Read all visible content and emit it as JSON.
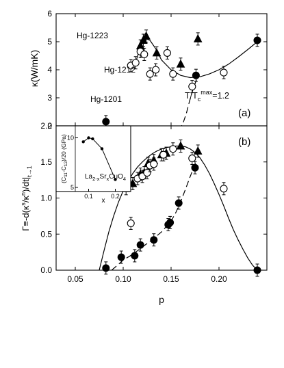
{
  "chart_data": [
    {
      "panel_label": "(a)",
      "type": "scatter",
      "ylabel": "κ(W/mK)",
      "ylim": [
        2,
        6
      ],
      "xlim": [
        0.03,
        0.25
      ],
      "yticks": [
        2,
        3,
        4,
        5,
        6
      ],
      "ytick_labels": [
        "2",
        "3",
        "4",
        "5",
        "6"
      ],
      "annotation": "T/Tcmax=1.2",
      "series": [
        {
          "name": "Hg-1223",
          "marker": "triangle",
          "points": [
            [
              0.118,
              4.85
            ],
            [
              0.121,
              5.05
            ],
            [
              0.124,
              5.2
            ],
            [
              0.135,
              4.6
            ],
            [
              0.16,
              4.2
            ],
            [
              0.178,
              5.1
            ]
          ]
        },
        {
          "name": "Hg-1212",
          "marker": "open-circle",
          "points": [
            [
              0.108,
              4.15
            ],
            [
              0.113,
              4.25
            ],
            [
              0.118,
              4.65
            ],
            [
              0.122,
              4.55
            ],
            [
              0.128,
              3.85
            ],
            [
              0.134,
              4.0
            ],
            [
              0.146,
              4.6
            ],
            [
              0.152,
              3.85
            ],
            [
              0.172,
              3.4
            ],
            [
              0.205,
              3.9
            ]
          ]
        },
        {
          "name": "Hg-1201",
          "marker": "filled-circle",
          "points": [
            [
              0.082,
              2.15
            ],
            [
              0.098,
              1.75
            ],
            [
              0.112,
              1.7
            ],
            [
              0.118,
              1.7
            ],
            [
              0.132,
              1.6
            ],
            [
              0.148,
              1.6
            ],
            [
              0.16,
              1.8
            ],
            [
              0.176,
              3.8
            ],
            [
              0.24,
              5.05
            ]
          ]
        }
      ],
      "curves": [
        {
          "style": "solid",
          "points": [
            [
              0.112,
              4.15
            ],
            [
              0.116,
              4.6
            ],
            [
              0.12,
              4.95
            ],
            [
              0.124,
              5.1
            ],
            [
              0.128,
              5.05
            ],
            [
              0.134,
              4.75
            ],
            [
              0.14,
              4.35
            ],
            [
              0.15,
              4.0
            ],
            [
              0.16,
              3.8
            ],
            [
              0.17,
              3.72
            ],
            [
              0.18,
              3.75
            ],
            [
              0.19,
              3.85
            ],
            [
              0.2,
              4.0
            ],
            [
              0.21,
              4.2
            ],
            [
              0.22,
              4.45
            ],
            [
              0.23,
              4.72
            ],
            [
              0.24,
              5.0
            ]
          ]
        },
        {
          "style": "dashed",
          "points": [
            [
              0.09,
              1.75
            ],
            [
              0.1,
              1.68
            ],
            [
              0.11,
              1.62
            ],
            [
              0.12,
              1.58
            ],
            [
              0.13,
              1.56
            ],
            [
              0.14,
              1.58
            ],
            [
              0.15,
              1.66
            ],
            [
              0.157,
              1.82
            ],
            [
              0.162,
              2.05
            ],
            [
              0.166,
              2.45
            ],
            [
              0.169,
              2.85
            ],
            [
              0.172,
              3.2
            ],
            [
              0.176,
              3.6
            ],
            [
              0.178,
              3.75
            ]
          ]
        }
      ]
    },
    {
      "panel_label": "(b)",
      "type": "scatter",
      "xlabel": "p",
      "ylabel": "Γ≡-d(κs/κn)/dt|t→1",
      "xlim": [
        0.03,
        0.25
      ],
      "ylim": [
        0,
        2
      ],
      "xticks": [
        0.05,
        0.1,
        0.15,
        0.2
      ],
      "xtick_labels": [
        "0.05",
        "0.10",
        "0.15",
        "0.20"
      ],
      "yticks": [
        0,
        0.5,
        1.0,
        1.5,
        2.0
      ],
      "ytick_labels": [
        "0.0",
        "0.5",
        "1.0",
        "1.5",
        "2.0"
      ],
      "series": [
        {
          "name": "Hg-1223",
          "marker": "triangle",
          "points": [
            [
              0.103,
              1.13
            ],
            [
              0.11,
              1.2
            ],
            [
              0.118,
              1.33
            ],
            [
              0.122,
              1.35
            ],
            [
              0.126,
              1.48
            ],
            [
              0.132,
              1.52
            ],
            [
              0.14,
              1.6
            ],
            [
              0.145,
              1.62
            ],
            [
              0.16,
              1.72
            ],
            [
              0.178,
              1.65
            ]
          ]
        },
        {
          "name": "Hg-1212",
          "marker": "open-circle",
          "points": [
            [
              0.108,
              0.65
            ],
            [
              0.115,
              1.27
            ],
            [
              0.12,
              1.3
            ],
            [
              0.125,
              1.35
            ],
            [
              0.128,
              1.45
            ],
            [
              0.132,
              1.47
            ],
            [
              0.142,
              1.6
            ],
            [
              0.152,
              1.68
            ],
            [
              0.172,
              1.55
            ],
            [
              0.205,
              1.13
            ]
          ]
        },
        {
          "name": "Hg-1201",
          "marker": "filled-circle",
          "points": [
            [
              0.082,
              0.03
            ],
            [
              0.098,
              0.18
            ],
            [
              0.112,
              0.2
            ],
            [
              0.118,
              0.35
            ],
            [
              0.132,
              0.42
            ],
            [
              0.147,
              0.63
            ],
            [
              0.149,
              0.66
            ],
            [
              0.158,
              0.93
            ],
            [
              0.175,
              1.42
            ],
            [
              0.24,
              0.0
            ]
          ]
        }
      ],
      "curves": [
        {
          "style": "solid",
          "points": [
            [
              0.075,
              0.0
            ],
            [
              0.08,
              0.27
            ],
            [
              0.085,
              0.53
            ],
            [
              0.09,
              0.75
            ],
            [
              0.095,
              0.94
            ],
            [
              0.1,
              1.1
            ],
            [
              0.105,
              1.23
            ],
            [
              0.11,
              1.34
            ],
            [
              0.115,
              1.43
            ],
            [
              0.12,
              1.5
            ],
            [
              0.125,
              1.56
            ],
            [
              0.13,
              1.61
            ],
            [
              0.135,
              1.65
            ],
            [
              0.14,
              1.68
            ],
            [
              0.145,
              1.7
            ],
            [
              0.15,
              1.71
            ],
            [
              0.155,
              1.72
            ],
            [
              0.16,
              1.72
            ],
            [
              0.165,
              1.71
            ],
            [
              0.17,
              1.68
            ],
            [
              0.175,
              1.63
            ],
            [
              0.18,
              1.56
            ],
            [
              0.185,
              1.46
            ],
            [
              0.19,
              1.34
            ],
            [
              0.195,
              1.2
            ],
            [
              0.2,
              1.05
            ],
            [
              0.205,
              0.89
            ],
            [
              0.21,
              0.72
            ],
            [
              0.215,
              0.56
            ],
            [
              0.22,
              0.42
            ],
            [
              0.225,
              0.29
            ],
            [
              0.23,
              0.17
            ],
            [
              0.235,
              0.07
            ],
            [
              0.24,
              0.0
            ]
          ]
        },
        {
          "style": "dashed",
          "points": [
            [
              0.088,
              0.0
            ],
            [
              0.095,
              0.08
            ],
            [
              0.1,
              0.14
            ],
            [
              0.11,
              0.22
            ],
            [
              0.12,
              0.32
            ],
            [
              0.13,
              0.42
            ],
            [
              0.14,
              0.53
            ],
            [
              0.15,
              0.68
            ],
            [
              0.155,
              0.8
            ],
            [
              0.16,
              0.95
            ],
            [
              0.165,
              1.12
            ],
            [
              0.17,
              1.3
            ],
            [
              0.173,
              1.4
            ],
            [
              0.176,
              1.5
            ]
          ]
        }
      ]
    },
    {
      "panel_label": "inset",
      "type": "line",
      "xlabel": "x",
      "ylabel": "(C11-C12)/20 (GPa)",
      "annotation": "La2-xSrxCuO4",
      "xlim": [
        0.05,
        0.25
      ],
      "ylim": [
        5,
        11
      ],
      "xticks": [
        0.1,
        0.2
      ],
      "xtick_labels": [
        "0.1",
        "0.2"
      ],
      "yticks": [
        5,
        10
      ],
      "ytick_labels": [
        "5",
        "10"
      ],
      "x": [
        0.08,
        0.1,
        0.115,
        0.15,
        0.2
      ],
      "values": [
        9.6,
        10.0,
        9.9,
        8.9,
        5.8
      ]
    }
  ]
}
